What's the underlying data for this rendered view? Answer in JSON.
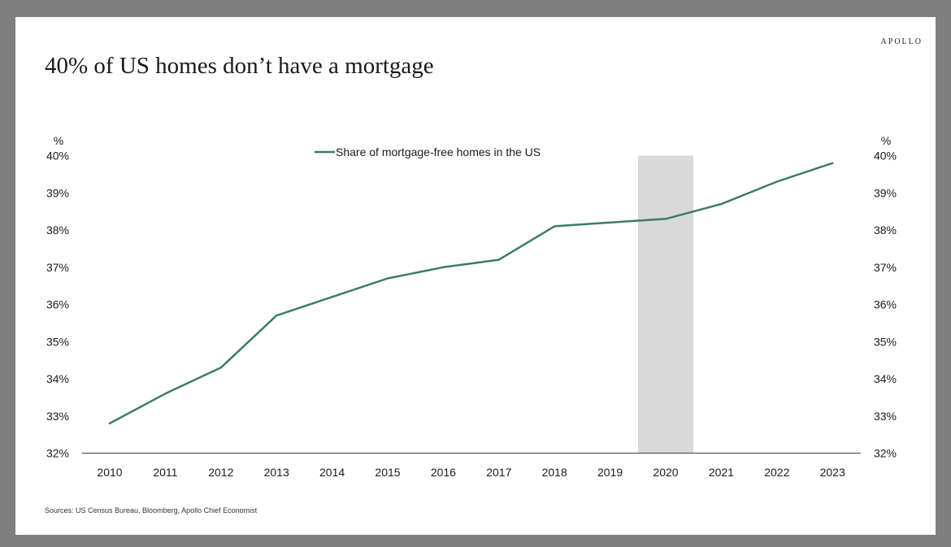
{
  "brand": "APOLLO",
  "chart_data": {
    "type": "line",
    "title": "40% of US homes don’t have a mortgage",
    "ylabel_left": "%",
    "ylabel_right": "%",
    "x": [
      2010,
      2011,
      2012,
      2013,
      2014,
      2015,
      2016,
      2017,
      2018,
      2019,
      2020,
      2021,
      2022,
      2023
    ],
    "ylim": [
      32,
      40
    ],
    "yticks": [
      32,
      33,
      34,
      35,
      36,
      37,
      38,
      39,
      40
    ],
    "ytick_labels": [
      "32%",
      "33%",
      "34%",
      "35%",
      "36%",
      "37%",
      "38%",
      "39%",
      "40%"
    ],
    "series": [
      {
        "name": "Share of mortgage-free homes in the US",
        "color": "#3d7a6b",
        "values": [
          32.8,
          33.6,
          34.3,
          35.7,
          36.2,
          36.7,
          37.0,
          37.2,
          38.1,
          38.2,
          38.3,
          38.7,
          39.3,
          39.8
        ]
      }
    ],
    "shaded_region": {
      "x": 2020,
      "color": "#d9d9d9"
    },
    "legend_position": "top-center",
    "grid": false
  },
  "source": "Sources: US Census Bureau, Bloomberg, Apollo Chief Economist"
}
